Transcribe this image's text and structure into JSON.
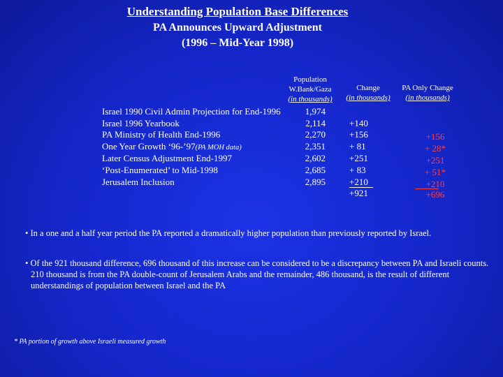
{
  "title": "Understanding Population Base Differences",
  "subtitle": "PA Announces Upward Adjustment",
  "period": "(1996 – Mid-Year 1998)",
  "headers": {
    "population": [
      "Population",
      "W.Bank/Gaza",
      "(in thousands)"
    ],
    "change": [
      "Change",
      "(in thousands)"
    ],
    "pa_only": [
      "PA Only Change",
      "(in thousands)"
    ]
  },
  "rows": [
    {
      "label": "Israel 1990 Civil Admin Projection for End-1996",
      "label_note": "",
      "population": "1,974",
      "change": "",
      "pa_change": ""
    },
    {
      "label": "Israel 1996 Yearbook",
      "label_note": "",
      "population": "2,114",
      "change": "+140",
      "pa_change": ""
    },
    {
      "label": "PA Ministry of Health  End-1996",
      "label_note": "",
      "population": "2,270",
      "change": "+156",
      "pa_change": "+156"
    },
    {
      "label": "One Year Growth ‘96-’97",
      "label_note": "(PA MOH data)",
      "population": "2,351",
      "change": "+  81",
      "pa_change": "+ 28*"
    },
    {
      "label": "Later Census Adjustment  End-1997",
      "label_note": "",
      "population": "2,602",
      "change": "+251",
      "pa_change": "+251"
    },
    {
      "label": "‘Post-Enumerated’ to Mid-1998",
      "label_note": "",
      "population": "2,685",
      "change": "+ 83",
      "pa_change": "+  51*"
    },
    {
      "label": "Jerusalem Inclusion",
      "label_note": "",
      "population": "2,895",
      "change": "+210",
      "pa_change": "+210"
    }
  ],
  "totals": {
    "change": "+921",
    "pa_change": "+696"
  },
  "bullets": [
    "• In a one and a half year period the PA reported a dramatically higher population than previously reported by Israel.",
    "• Of the 921 thousand difference, 696 thousand of this increase can be considered to be a discrepancy between PA and Israeli counts.  210 thousand is from the PA double-count of Jerusalem Arabs and the remainder, 486 thousand, is the result of different understandings of population between Israel and the PA"
  ],
  "footnote": "* PA portion of growth above Israeli measured growth",
  "colors": {
    "background": "#1426c8",
    "text": "#ffffff",
    "pa_highlight": "#ff4040"
  }
}
